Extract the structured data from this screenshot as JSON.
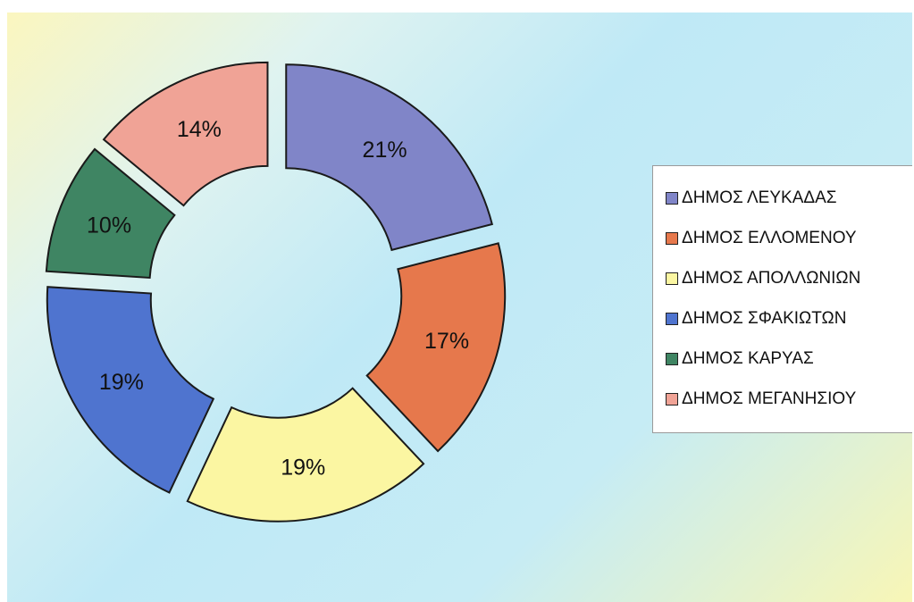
{
  "chart_data": {
    "type": "pie",
    "title": "",
    "categories": [
      "ΔΗΜΟΣ ΛΕΥΚΑΔΑΣ",
      "ΔΗΜΟΣ ΕΛΛΟΜΕΝΟΥ",
      "ΔΗΜΟΣ ΑΠΟΛΛΩΝΙΩΝ",
      "ΔΗΜΟΣ ΣΦΑΚΙΩΤΩΝ",
      "ΔΗΜΟΣ ΚΑΡΥΑΣ",
      "ΔΗΜΟΣ ΜΕΓΑΝΗΣΙΟΥ"
    ],
    "values": [
      21,
      17,
      19,
      19,
      10,
      14
    ],
    "labels": [
      "21%",
      "17%",
      "19%",
      "19%",
      "10%",
      "14%"
    ],
    "colors": [
      "#8085c8",
      "#e6784c",
      "#fbf6a2",
      "#4f74cf",
      "#3f8563",
      "#f0a396"
    ],
    "donut": true,
    "exploded": true,
    "legend_position": "right"
  }
}
